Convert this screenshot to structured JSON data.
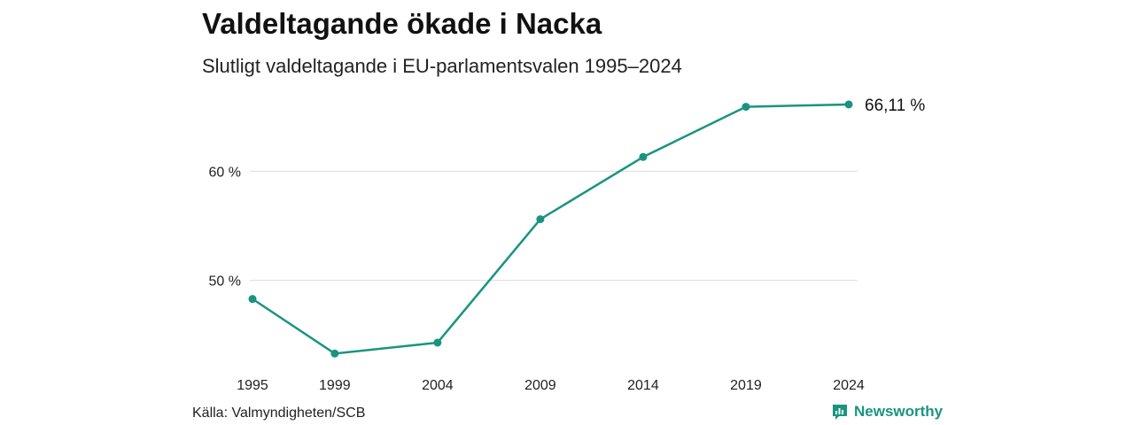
{
  "title": "Valdeltagande ökade i Nacka",
  "subtitle": "Slutligt valdeltagande i EU-parlamentsvalen 1995–2024",
  "source": "Källa: Valmyndigheten/SCB",
  "brand": {
    "name": "Newsworthy",
    "icon": "newsworthy-logo-icon",
    "color": "#1a9480"
  },
  "chart_data": {
    "type": "line",
    "title": "Valdeltagande ökade i Nacka",
    "subtitle": "Slutligt valdeltagande i EU-parlamentsvalen 1995–2024",
    "x": [
      1995,
      1999,
      2004,
      2009,
      2014,
      2019,
      2024
    ],
    "series": [
      {
        "values": [
          48.3,
          43.3,
          44.3,
          55.6,
          61.3,
          65.9,
          66.11
        ],
        "color": "#1a9480"
      }
    ],
    "ylim": [
      40,
      70
    ],
    "yticks": [
      50,
      60
    ],
    "ytick_labels": [
      "50 %",
      "60 %"
    ],
    "xtick_labels": [
      "1995",
      "1999",
      "2004",
      "2009",
      "2014",
      "2019",
      "2024"
    ],
    "end_label": "66,11 %",
    "grid": true,
    "legend": "none"
  }
}
